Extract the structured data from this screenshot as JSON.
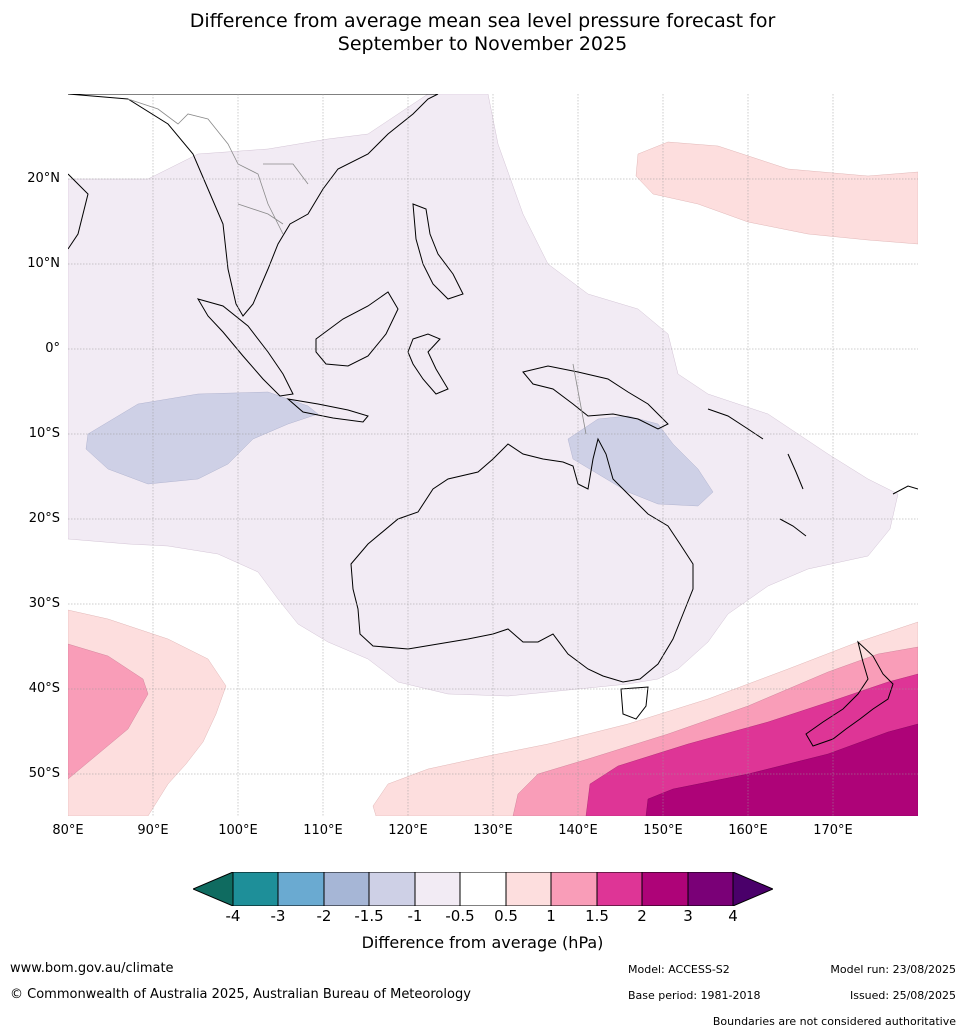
{
  "title_line1": "Difference from average mean sea level pressure forecast for",
  "title_line2": "September to November 2025",
  "lat_labels": [
    "20°N",
    "10°N",
    "0°",
    "10°S",
    "20°S",
    "30°S",
    "40°S",
    "50°S"
  ],
  "lon_labels": [
    "80°E",
    "90°E",
    "100°E",
    "110°E",
    "120°E",
    "130°E",
    "140°E",
    "150°E",
    "160°E",
    "170°E"
  ],
  "colorbar": {
    "label": "Difference from average (hPa)",
    "ticks": [
      "-4",
      "-3",
      "-2",
      "-1.5",
      "-1",
      "-0.5",
      "0.5",
      "1",
      "1.5",
      "2",
      "3",
      "4"
    ],
    "colors": [
      "#0f6b60",
      "#1e8f99",
      "#6aaad1",
      "#a6b6d6",
      "#ced0e6",
      "#f2ebf4",
      "#ffffff",
      "#fddede",
      "#f99db8",
      "#de3596",
      "#ae0378",
      "#7a0077",
      "#4a006a"
    ]
  },
  "regions": {
    "tropics_weak_negative": "#f2ebf4",
    "indian_ocean_negative": "#ced0e6",
    "coral_sea_negative": "#ced0e6",
    "south_positive_light": "#fddede",
    "south_positive_mid": "#f99db8",
    "south_positive_high": "#de3596",
    "south_positive_max": "#ae0378"
  },
  "footer": {
    "website": "www.bom.gov.au/climate",
    "copyright": "© Commonwealth of Australia 2025, Australian Bureau of Meteorology",
    "model": "Model: ACCESS-S2",
    "base_period": "Base period: 1981-2018",
    "model_run": "Model run: 23/08/2025",
    "issued": "Issued: 25/08/2025",
    "boundaries": "Boundaries are not considered authoritative"
  }
}
